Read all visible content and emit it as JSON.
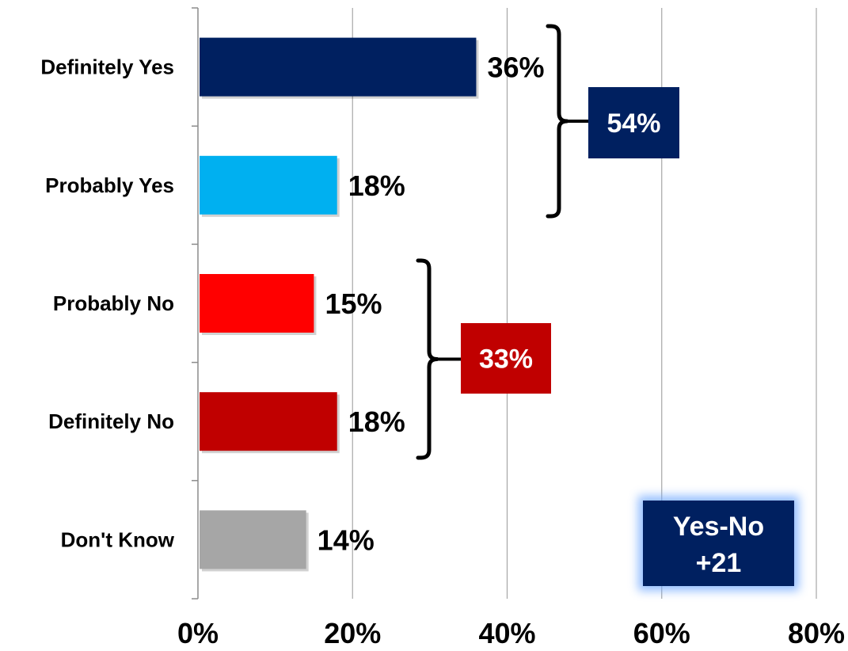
{
  "chart_data": {
    "type": "bar",
    "orientation": "horizontal",
    "categories": [
      "Definitely Yes",
      "Probably Yes",
      "Probably No",
      "Definitely No",
      "Don't Know"
    ],
    "values": [
      36,
      18,
      15,
      18,
      14
    ],
    "value_labels": [
      "36%",
      "18%",
      "15%",
      "18%",
      "14%"
    ],
    "bar_colors": [
      "#002060",
      "#00b0f0",
      "#ff0000",
      "#c00000",
      "#a6a6a6"
    ],
    "xlim": [
      0,
      80
    ],
    "xticks": [
      0,
      20,
      40,
      60,
      80
    ],
    "xtick_labels": [
      "0%",
      "20%",
      "40%",
      "60%",
      "80%"
    ],
    "grid": "vertical",
    "legend": "none",
    "annotations": [
      {
        "label": "54%",
        "groups": [
          "Definitely Yes",
          "Probably Yes"
        ],
        "color": "#002060"
      },
      {
        "label": "33%",
        "groups": [
          "Probably No",
          "Definitely No"
        ],
        "color": "#c00000"
      }
    ],
    "net_box": {
      "line1": "Yes-No",
      "line2": "+21",
      "color": "#002060"
    }
  }
}
